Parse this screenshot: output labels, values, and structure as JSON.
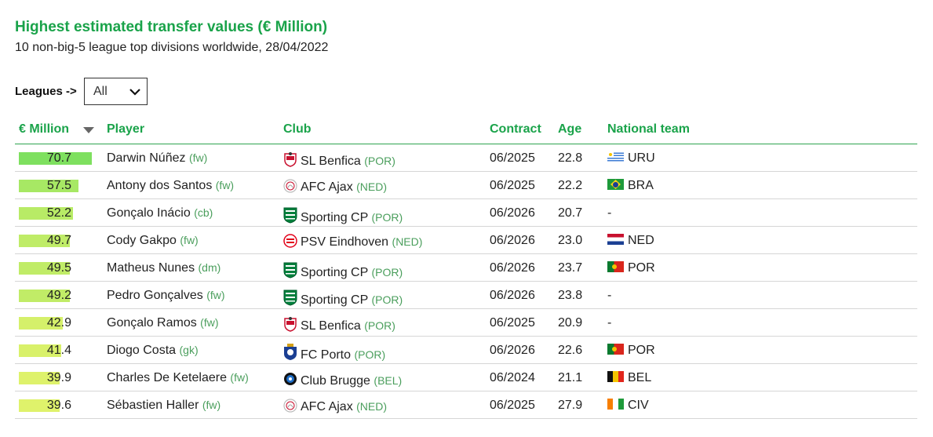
{
  "header": {
    "title": "Highest estimated transfer values (€ Million)",
    "subtitle": "10 non-big-5 league top divisions worldwide, 28/04/2022"
  },
  "filter": {
    "label": "Leagues ->",
    "selected": "All"
  },
  "columns": {
    "value": "€ Million",
    "player": "Player",
    "club": "Club",
    "contract": "Contract",
    "age": "Age",
    "national": "National team"
  },
  "bar_colors": {
    "max": "#7ee05f",
    "min": "#dff26b"
  },
  "value_max": 70.7,
  "rows": [
    {
      "value": "70.7",
      "player": "Darwin Núñez",
      "pos": "(fw)",
      "club": "SL Benfica",
      "country": "(POR)",
      "crest": "benfica",
      "contract": "06/2025",
      "age": "22.8",
      "nt": "URU",
      "flag": "uru"
    },
    {
      "value": "57.5",
      "player": "Antony dos Santos",
      "pos": "(fw)",
      "club": "AFC Ajax",
      "country": "(NED)",
      "crest": "ajax",
      "contract": "06/2025",
      "age": "22.2",
      "nt": "BRA",
      "flag": "bra"
    },
    {
      "value": "52.2",
      "player": "Gonçalo Inácio",
      "pos": "(cb)",
      "club": "Sporting CP",
      "country": "(POR)",
      "crest": "sporting",
      "contract": "06/2026",
      "age": "20.7",
      "nt": "-",
      "flag": ""
    },
    {
      "value": "49.7",
      "player": "Cody Gakpo",
      "pos": "(fw)",
      "club": "PSV Eindhoven",
      "country": "(NED)",
      "crest": "psv",
      "contract": "06/2026",
      "age": "23.0",
      "nt": "NED",
      "flag": "ned"
    },
    {
      "value": "49.5",
      "player": "Matheus Nunes",
      "pos": "(dm)",
      "club": "Sporting CP",
      "country": "(POR)",
      "crest": "sporting",
      "contract": "06/2026",
      "age": "23.7",
      "nt": "POR",
      "flag": "por"
    },
    {
      "value": "49.2",
      "player": "Pedro Gonçalves",
      "pos": "(fw)",
      "club": "Sporting CP",
      "country": "(POR)",
      "crest": "sporting",
      "contract": "06/2026",
      "age": "23.8",
      "nt": "-",
      "flag": ""
    },
    {
      "value": "42.9",
      "player": "Gonçalo Ramos",
      "pos": "(fw)",
      "club": "SL Benfica",
      "country": "(POR)",
      "crest": "benfica",
      "contract": "06/2025",
      "age": "20.9",
      "nt": "-",
      "flag": ""
    },
    {
      "value": "41.4",
      "player": "Diogo Costa",
      "pos": "(gk)",
      "club": "FC Porto",
      "country": "(POR)",
      "crest": "porto",
      "contract": "06/2026",
      "age": "22.6",
      "nt": "POR",
      "flag": "por"
    },
    {
      "value": "39.9",
      "player": "Charles De Ketelaere",
      "pos": "(fw)",
      "club": "Club Brugge",
      "country": "(BEL)",
      "crest": "brugge",
      "contract": "06/2024",
      "age": "21.1",
      "nt": "BEL",
      "flag": "bel"
    },
    {
      "value": "39.6",
      "player": "Sébastien Haller",
      "pos": "(fw)",
      "club": "AFC Ajax",
      "country": "(NED)",
      "crest": "ajax",
      "contract": "06/2025",
      "age": "27.9",
      "nt": "CIV",
      "flag": "civ"
    }
  ]
}
